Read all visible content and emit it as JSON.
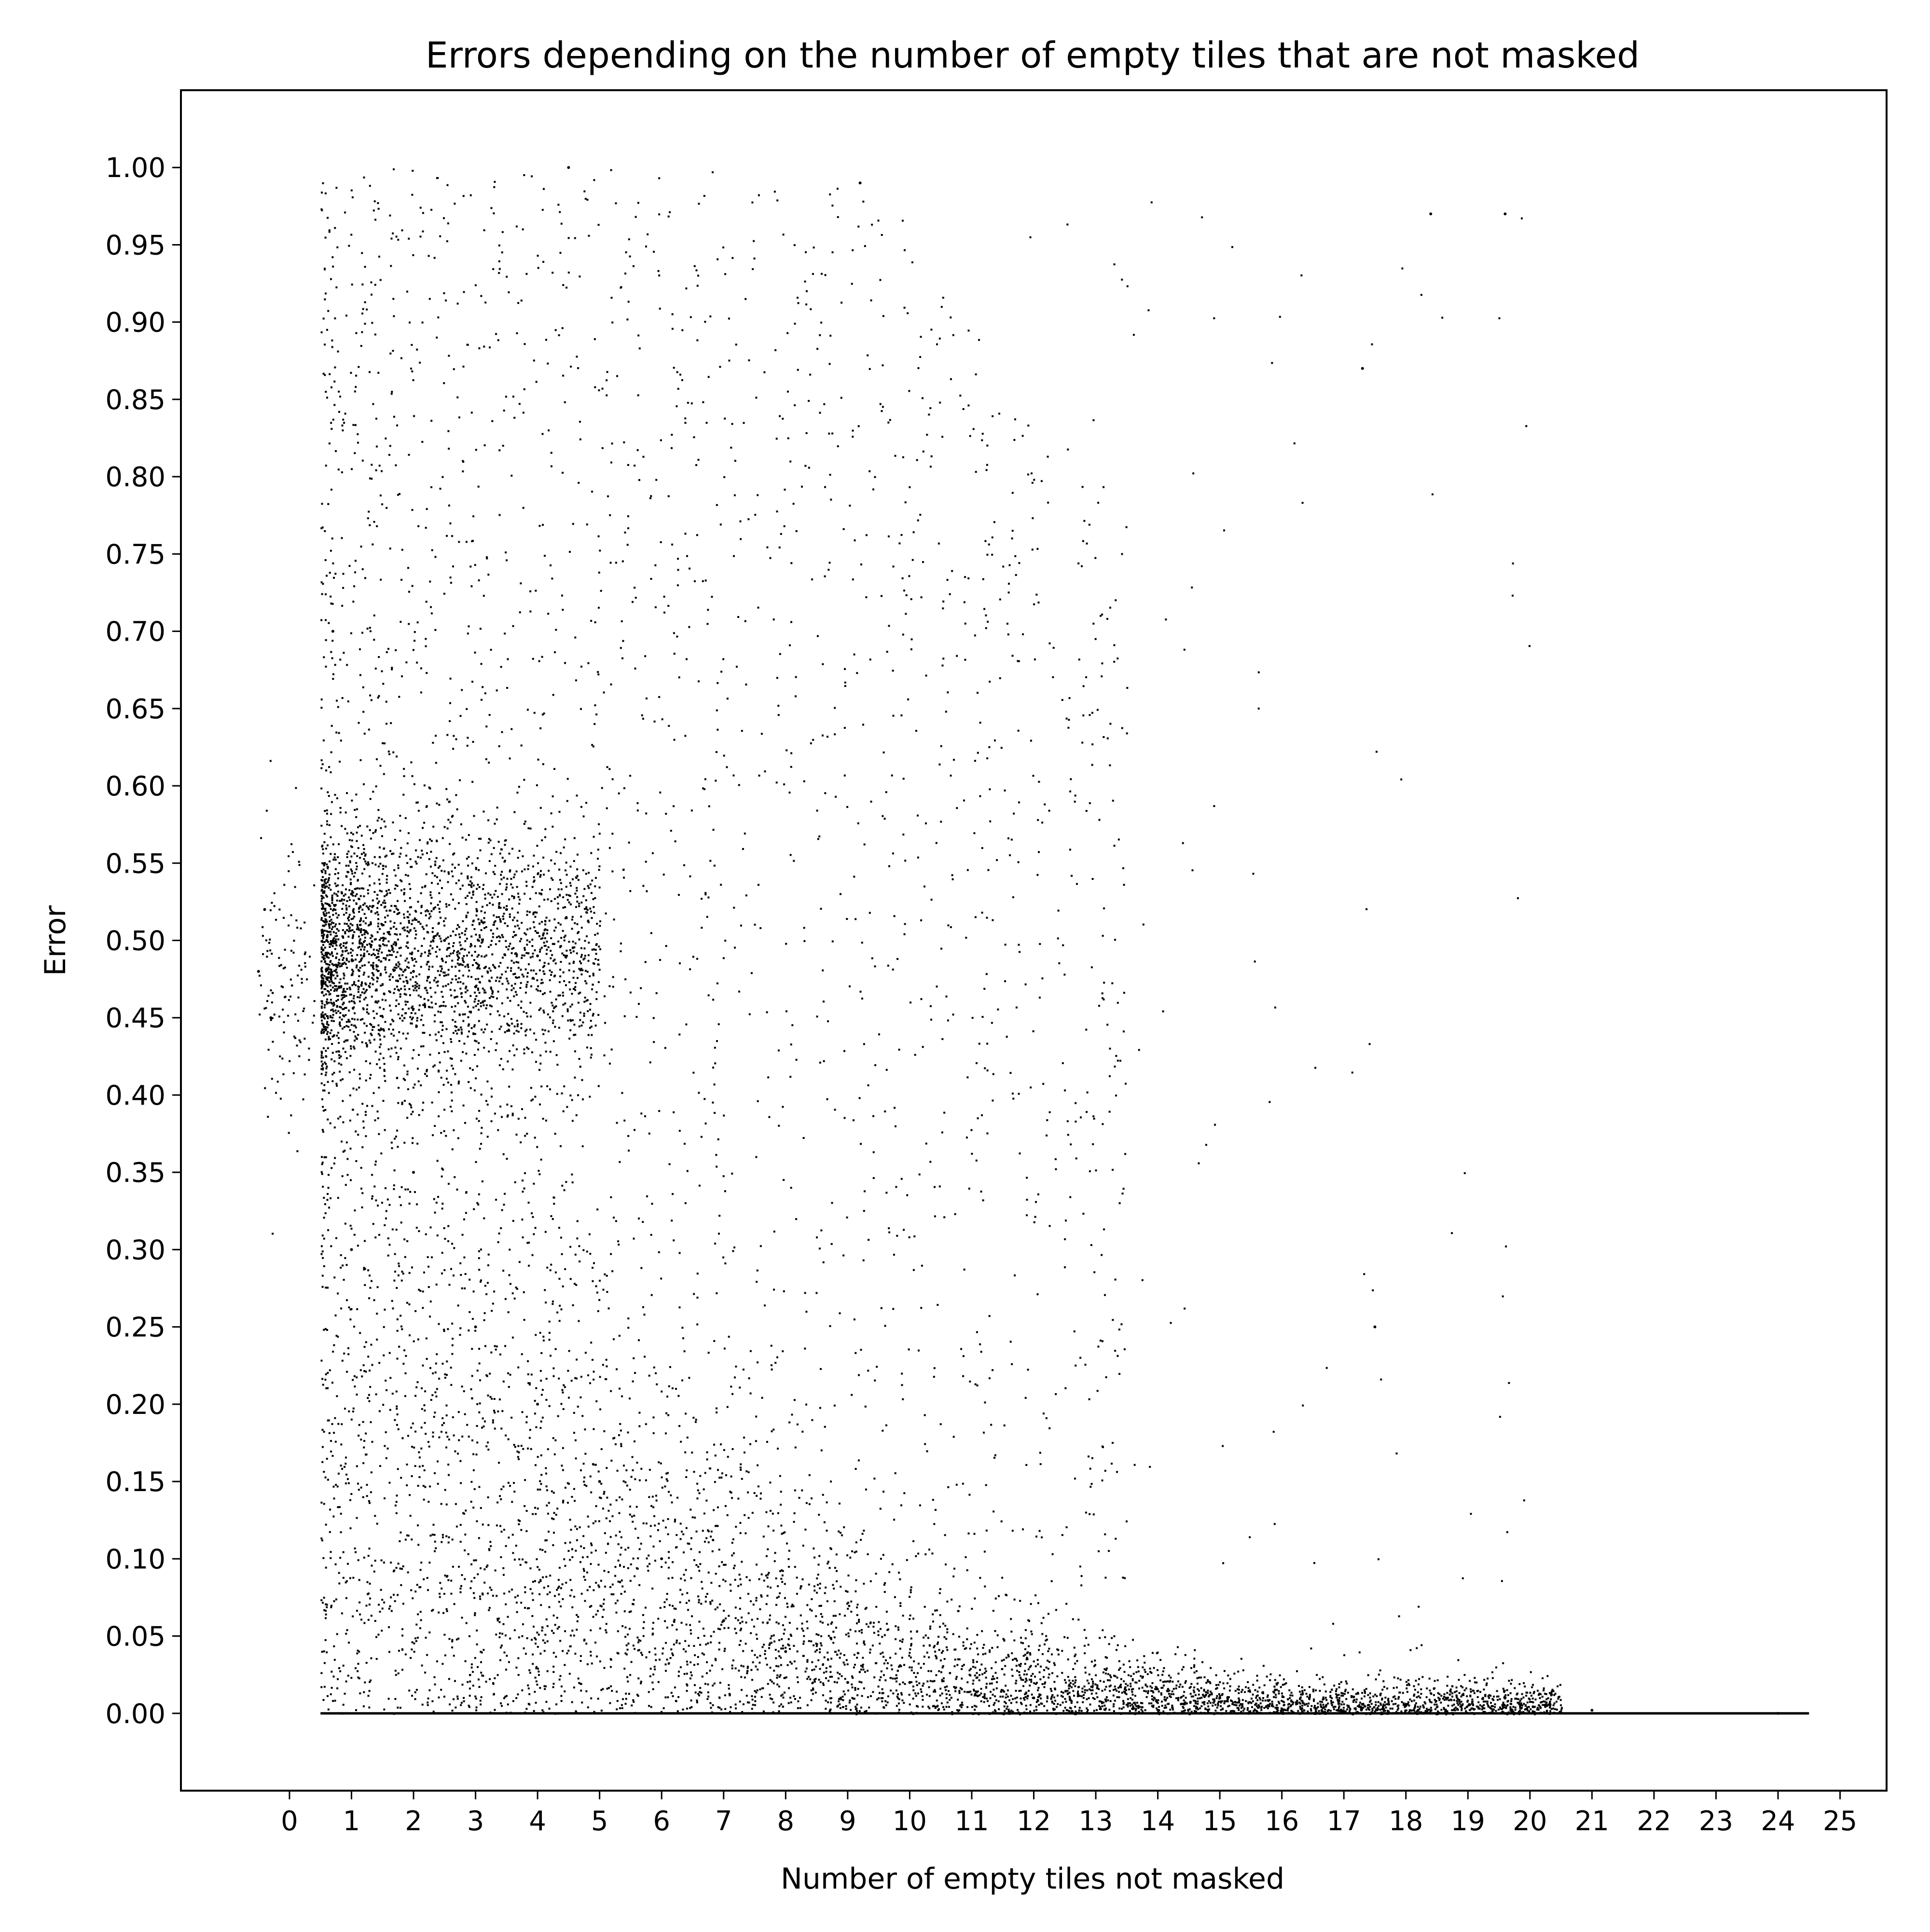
{
  "chart_data": {
    "type": "scatter",
    "title": "Errors depending on the number of empty tiles that are not masked",
    "xlabel": "Number of empty tiles not masked",
    "ylabel": "Error",
    "xlim": [
      -1.75,
      25.75
    ],
    "ylim": [
      -0.05,
      1.05
    ],
    "xticks": [
      "0",
      "1",
      "2",
      "3",
      "4",
      "5",
      "6",
      "7",
      "8",
      "9",
      "10",
      "11",
      "12",
      "13",
      "14",
      "15",
      "16",
      "17",
      "18",
      "19",
      "20",
      "21",
      "22",
      "23",
      "24",
      "25"
    ],
    "yticks": [
      "0.00",
      "0.05",
      "0.10",
      "0.15",
      "0.20",
      "0.25",
      "0.30",
      "0.35",
      "0.40",
      "0.45",
      "0.50",
      "0.55",
      "0.60",
      "0.65",
      "0.70",
      "0.75",
      "0.80",
      "0.85",
      "0.90",
      "0.95",
      "1.00"
    ],
    "grid": false,
    "marker_color": "#000000",
    "series": [
      {
        "values": [
          {
            "x": -0.5,
            "y": 0.48
          },
          {
            "x": -0.4,
            "y": 0.52
          },
          {
            "x": -0.3,
            "y": 0.45
          },
          {
            "x": 0.6,
            "y": 0.5
          },
          {
            "x": 0.8,
            "y": 0.47
          },
          {
            "x": 1.0,
            "y": 0.53
          },
          {
            "x": 1.2,
            "y": 0.49
          },
          {
            "x": 1.5,
            "y": 0.51
          },
          {
            "x": 2.0,
            "y": 0.48
          },
          {
            "x": 2.5,
            "y": 0.5
          },
          {
            "x": 3.0,
            "y": 0.47
          },
          {
            "x": 3.5,
            "y": 0.52
          },
          {
            "x": 4.0,
            "y": 0.49
          },
          {
            "x": 0.7,
            "y": 0.7
          },
          {
            "x": 1.0,
            "y": 0.3
          },
          {
            "x": 2.0,
            "y": 0.35
          },
          {
            "x": 3.0,
            "y": 0.25
          },
          {
            "x": 4.0,
            "y": 0.2
          },
          {
            "x": 5.0,
            "y": 0.15
          },
          {
            "x": 6.0,
            "y": 0.1
          },
          {
            "x": 7.0,
            "y": 0.06
          },
          {
            "x": 8.0,
            "y": 0.04
          },
          {
            "x": 9.0,
            "y": 0.02
          },
          {
            "x": 10.0,
            "y": 0.02
          },
          {
            "x": 12.0,
            "y": 0.01
          },
          {
            "x": 15.0,
            "y": 0.01
          },
          {
            "x": 18.0,
            "y": 0.005
          },
          {
            "x": 21.0,
            "y": 0.002
          },
          {
            "x": 24.0,
            "y": 0.0
          },
          {
            "x": 4.5,
            "y": 1.0
          },
          {
            "x": 9.2,
            "y": 0.99
          },
          {
            "x": 18.4,
            "y": 0.97
          },
          {
            "x": 19.6,
            "y": 0.97
          },
          {
            "x": 17.3,
            "y": 0.87
          },
          {
            "x": 17.5,
            "y": 0.25
          }
        ],
        "line_segment": {
          "x": [
            0.5,
            24.5
          ],
          "y": [
            0.0,
            0.0
          ]
        }
      }
    ]
  }
}
